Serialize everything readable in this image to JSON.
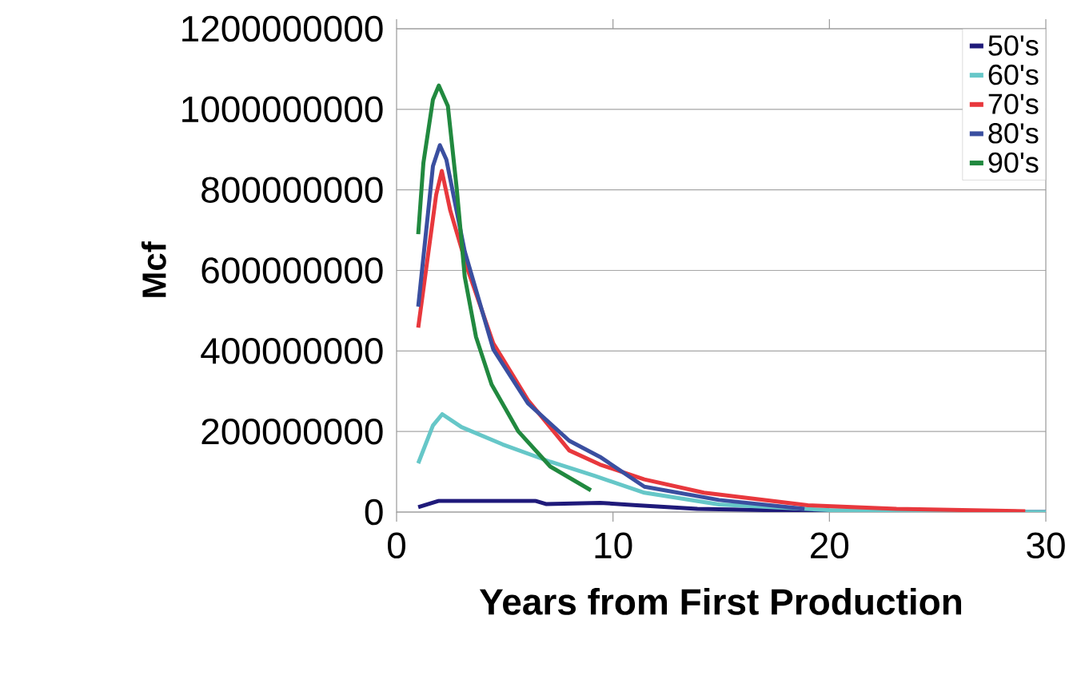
{
  "chart_data": {
    "type": "line",
    "xlabel": "Years from First Production",
    "ylabel": "Mcf",
    "xlim": [
      0,
      30
    ],
    "ylim": [
      0,
      1200000000
    ],
    "xticks": [
      0,
      10,
      20,
      30
    ],
    "yticks": [
      0,
      200000000,
      400000000,
      600000000,
      800000000,
      1000000000,
      1200000000
    ],
    "grid": "y",
    "legend": "top right",
    "marker": "none",
    "line_style": "solid",
    "series": [
      {
        "name": "50's",
        "color": "#1f1a7a",
        "x": [
          1,
          1.96,
          6.4,
          6.9,
          9.4,
          11.1,
          13.9,
          20.3,
          22,
          30
        ],
        "values": [
          12000000,
          28000000,
          28000000,
          20000000,
          23000000,
          17000000,
          8000000,
          null,
          0,
          0
        ]
      },
      {
        "name": "60's",
        "color": "#66c7c8",
        "x": [
          1,
          1.68,
          2.11,
          3,
          4.9,
          7.1,
          9.15,
          11.45,
          14.9,
          20,
          30
        ],
        "values": [
          121000000,
          215000000,
          243000000,
          211000000,
          168000000,
          125000000,
          90000000,
          48000000,
          19000000,
          5000000,
          0
        ]
      },
      {
        "name": "70's",
        "color": "#e8383d",
        "x": [
          1,
          1.83,
          2.09,
          2.48,
          3.3,
          4.47,
          6.07,
          7.98,
          9.4,
          11.45,
          14.2,
          19,
          23.1,
          29.05
        ],
        "values": [
          458000000,
          788000000,
          847000000,
          749000000,
          600000000,
          419000000,
          278000000,
          153000000,
          118000000,
          81000000,
          48000000,
          17000000,
          8000000,
          2000000
        ]
      },
      {
        "name": "80's",
        "color": "#3a4fa0",
        "x": [
          1,
          1.68,
          2,
          2.3,
          3.15,
          4.47,
          6.07,
          7.98,
          9.4,
          11.45,
          14.9,
          18.85
        ],
        "values": [
          510000000,
          859000000,
          911000000,
          875000000,
          647000000,
          404000000,
          270000000,
          177000000,
          137000000,
          63000000,
          30000000,
          8000000
        ]
      },
      {
        "name": "90's",
        "color": "#21893f",
        "x": [
          1,
          1.24,
          1.68,
          1.95,
          2.37,
          2.78,
          3.15,
          3.67,
          4.39,
          5.63,
          7.1,
          8.98
        ],
        "values": [
          690000000,
          867000000,
          1024000000,
          1059000000,
          1008000000,
          803000000,
          584000000,
          435000000,
          317000000,
          200000000,
          113000000,
          54000000
        ]
      }
    ]
  }
}
